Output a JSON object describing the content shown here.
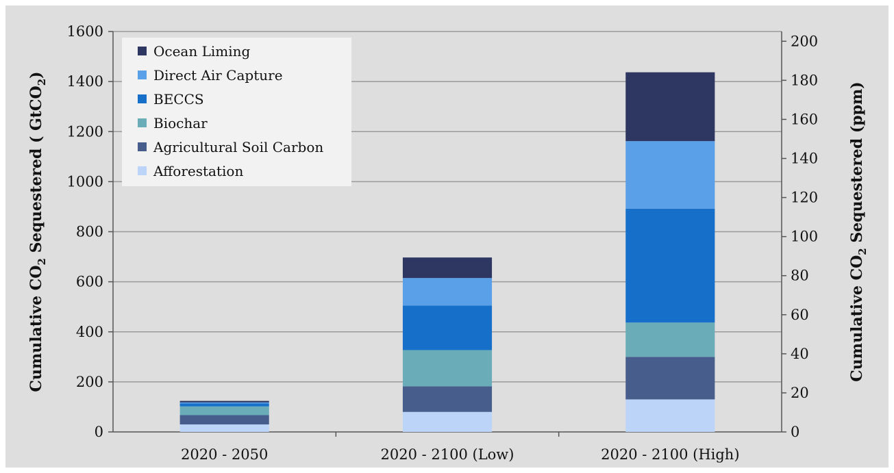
{
  "chart_data": {
    "type": "bar",
    "stacked": true,
    "categories": [
      "2020 - 2050",
      "2020 - 2100 (Low)",
      "2020 - 2100 (High)"
    ],
    "series": [
      {
        "name": "Afforestation",
        "color": "#bcd4f7",
        "values": [
          30,
          80,
          130
        ]
      },
      {
        "name": "Agricultural Soil Carbon",
        "color": "#475e8c",
        "values": [
          37,
          102,
          170
        ]
      },
      {
        "name": "Biochar",
        "color": "#6aacb8",
        "values": [
          35,
          145,
          137
        ]
      },
      {
        "name": "BECCS",
        "color": "#1670c9",
        "values": [
          12,
          178,
          455
        ]
      },
      {
        "name": "Direct Air Capture",
        "color": "#5aa0e8",
        "values": [
          4,
          110,
          270
        ]
      },
      {
        "name": "Ocean Liming",
        "color": "#2e3762",
        "values": [
          6,
          82,
          275
        ]
      }
    ],
    "ylabel": "Cumulative CO₂ Sequestered ( GtCO₂)",
    "ylabel_parts": [
      "Cumulative CO",
      "2",
      " Sequestered ( GtCO",
      "2",
      ")"
    ],
    "y2label": "Cumulative CO₂ Sequestered (ppm)",
    "y2label_parts": [
      "Cumulative CO",
      "2",
      " Sequestered (ppm)"
    ],
    "ylim": [
      0,
      1600
    ],
    "yticks": [
      0,
      200,
      400,
      600,
      800,
      1000,
      1200,
      1400,
      1600
    ],
    "y2lim": [
      0,
      205
    ],
    "y2ticks": [
      0,
      20,
      40,
      60,
      80,
      100,
      120,
      140,
      160,
      180,
      200
    ],
    "grid": true,
    "legend": {
      "position": "top-left",
      "order": [
        "Ocean Liming",
        "Direct Air Capture",
        "BECCS",
        "Biochar",
        "Agricultural Soil Carbon",
        "Afforestation"
      ]
    },
    "colors": {
      "background": "#dedede",
      "gridline": "#9a9a9a",
      "axis": "#555555"
    }
  }
}
